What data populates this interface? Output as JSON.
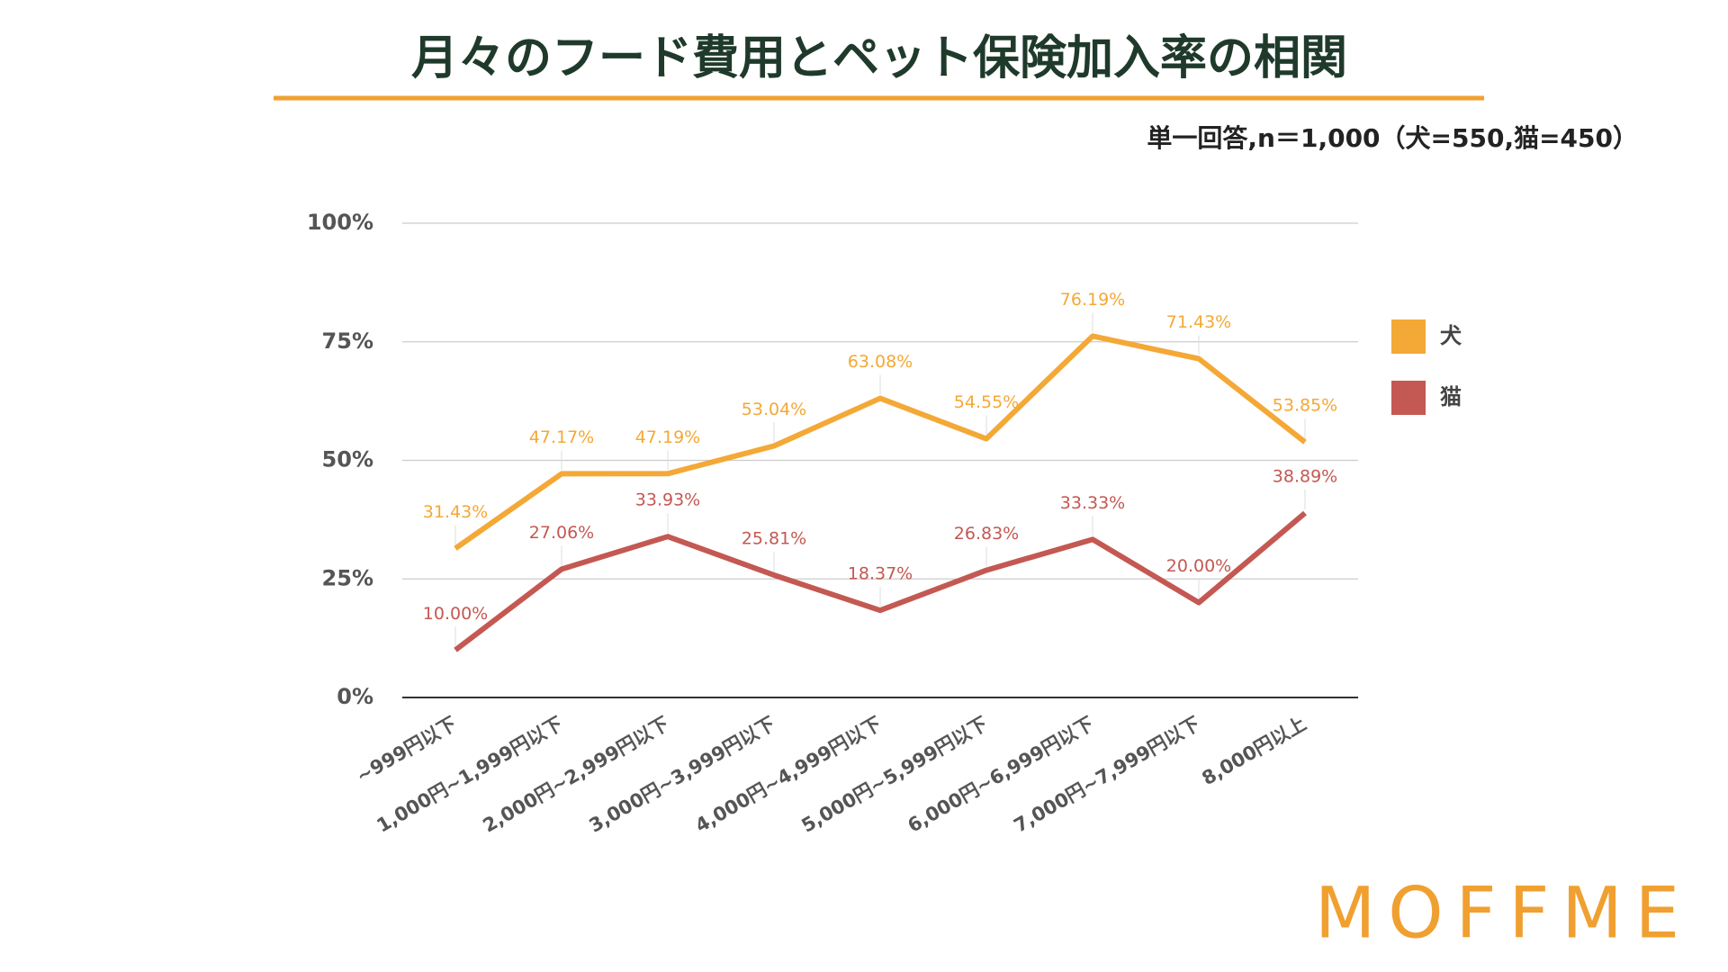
{
  "chart_data": {
    "type": "line",
    "title": "月々のフード費用とペット保険加入率の相関",
    "subtitle": "単一回答,n＝1,000（犬=550,猫=450）",
    "brand": "MOFFME",
    "categories": [
      "~999円以下",
      "1,000円~1,999円以下",
      "2,000円~2,999円以下",
      "3,000円~3,999円以下",
      "4,000円~4,999円以下",
      "5,000円~5,999円以下",
      "6,000円~6,999円以下",
      "7,000円~7,999円以下",
      "8,000円以上"
    ],
    "series": [
      {
        "name": "犬",
        "color": "#f4a836",
        "values": [
          31.43,
          47.17,
          47.19,
          53.04,
          63.08,
          54.55,
          76.19,
          71.43,
          53.85
        ],
        "value_labels": [
          "31.43%",
          "47.17%",
          "47.19%",
          "53.04%",
          "63.08%",
          "54.55%",
          "76.19%",
          "71.43%",
          "53.85%"
        ]
      },
      {
        "name": "猫",
        "color": "#c45852",
        "values": [
          10.0,
          27.06,
          33.93,
          25.81,
          18.37,
          26.83,
          33.33,
          20.0,
          38.89
        ],
        "value_labels": [
          "10.00%",
          "27.06%",
          "33.93%",
          "25.81%",
          "18.37%",
          "26.83%",
          "33.33%",
          "20.00%",
          "38.89%"
        ]
      }
    ],
    "ylim": [
      0,
      100
    ],
    "yticks": [
      {
        "value": 0,
        "label": "0%"
      },
      {
        "value": 25,
        "label": "25%"
      },
      {
        "value": 50,
        "label": "50%"
      },
      {
        "value": 75,
        "label": "75%"
      },
      {
        "value": 100,
        "label": "100%"
      }
    ],
    "grid": true,
    "legend": "right"
  }
}
